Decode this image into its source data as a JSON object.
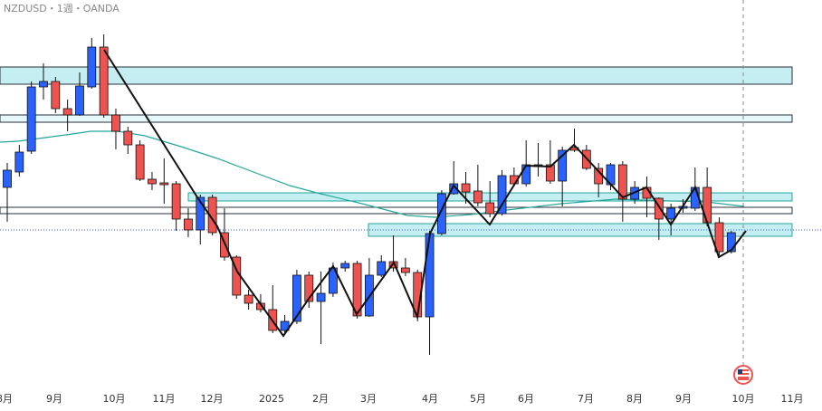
{
  "chart_data": {
    "type": "candlestick",
    "title": "NZDUSD・1週・OANDA",
    "ylim": [
      0.55,
      0.65
    ],
    "up_color": "#2962ff",
    "down_color": "#ef5350",
    "x_labels": [
      "8月",
      "9月",
      "10月",
      "11月",
      "12月",
      "2025",
      "2月",
      "3月",
      "4月",
      "5月",
      "6月",
      "7月",
      "8月",
      "9月",
      "10月",
      "11月"
    ],
    "open": [
      0.59825,
      0.6025,
      0.60825,
      0.626,
      0.6275,
      0.62,
      0.61825,
      0.626,
      0.637,
      0.61825,
      0.61375,
      0.61,
      0.6005,
      0.5995,
      0.59925,
      0.5895,
      0.5865,
      0.5955,
      0.58575,
      0.579,
      0.5685,
      0.56625,
      0.5645,
      0.55875,
      0.56125,
      0.574,
      0.56675,
      0.569,
      0.576,
      0.57725,
      0.56275,
      0.574,
      0.57775,
      0.576,
      0.57475,
      0.5625,
      0.5855,
      0.5965,
      0.59925,
      0.59725,
      0.594,
      0.591,
      0.6015,
      0.59925,
      0.604,
      0.6045,
      0.6,
      0.60925,
      0.6085,
      0.6035,
      0.599,
      0.6045,
      0.595,
      0.59825,
      0.59525,
      0.5895,
      0.5925,
      0.5925,
      0.59825,
      0.5885,
      0.5805
    ],
    "high": [
      0.605,
      0.61,
      0.6275,
      0.6325,
      0.62875,
      0.6225,
      0.63,
      0.6395,
      0.6405,
      0.62,
      0.615,
      0.61125,
      0.6025,
      0.60625,
      0.6,
      0.5925,
      0.59625,
      0.59625,
      0.5925,
      0.5795,
      0.57,
      0.56875,
      0.57125,
      0.563,
      0.5755,
      0.575,
      0.575,
      0.5775,
      0.578,
      0.578,
      0.57875,
      0.5795,
      0.585,
      0.57875,
      0.5755,
      0.58625,
      0.5975,
      0.6055,
      0.6025,
      0.6045,
      0.6,
      0.603,
      0.60375,
      0.61125,
      0.6105,
      0.61125,
      0.6095,
      0.6145,
      0.61,
      0.605,
      0.605,
      0.6055,
      0.6,
      0.60125,
      0.5955,
      0.59375,
      0.595,
      0.60375,
      0.60375,
      0.59,
      0.58625
    ],
    "low": [
      0.58875,
      0.60125,
      0.6075,
      0.6225,
      0.61875,
      0.61375,
      0.618,
      0.6255,
      0.6175,
      0.60875,
      0.6075,
      0.6,
      0.5975,
      0.59375,
      0.58625,
      0.5845,
      0.5825,
      0.585,
      0.578,
      0.5675,
      0.5645,
      0.56375,
      0.558,
      0.5575,
      0.5605,
      0.565,
      0.555,
      0.568,
      0.575,
      0.562,
      0.5625,
      0.5735,
      0.575,
      0.57375,
      0.56125,
      0.552,
      0.585,
      0.59625,
      0.59375,
      0.593,
      0.59,
      0.5905,
      0.5985,
      0.5985,
      0.60125,
      0.59925,
      0.593,
      0.608,
      0.603,
      0.5955,
      0.5975,
      0.58875,
      0.59375,
      0.59,
      0.58375,
      0.585,
      0.59125,
      0.59175,
      0.5875,
      0.5795,
      0.58
    ],
    "close": [
      0.603,
      0.608,
      0.626,
      0.6275,
      0.62,
      0.61825,
      0.62625,
      0.637,
      0.61825,
      0.61375,
      0.61,
      0.6005,
      0.59925,
      0.599,
      0.5895,
      0.5865,
      0.5955,
      0.58575,
      0.579,
      0.5685,
      0.56625,
      0.5645,
      0.55875,
      0.56125,
      0.574,
      0.56675,
      0.569,
      0.576,
      0.57725,
      0.56275,
      0.574,
      0.57775,
      0.576,
      0.57475,
      0.5625,
      0.5855,
      0.5965,
      0.59925,
      0.597,
      0.594,
      0.591,
      0.6015,
      0.59925,
      0.6045,
      0.6045,
      0.6,
      0.6085,
      0.6085,
      0.6035,
      0.59925,
      0.6045,
      0.595,
      0.59825,
      0.59525,
      0.5895,
      0.5925,
      0.593,
      0.59825,
      0.5885,
      0.5805,
      0.58575
    ]
  }
}
